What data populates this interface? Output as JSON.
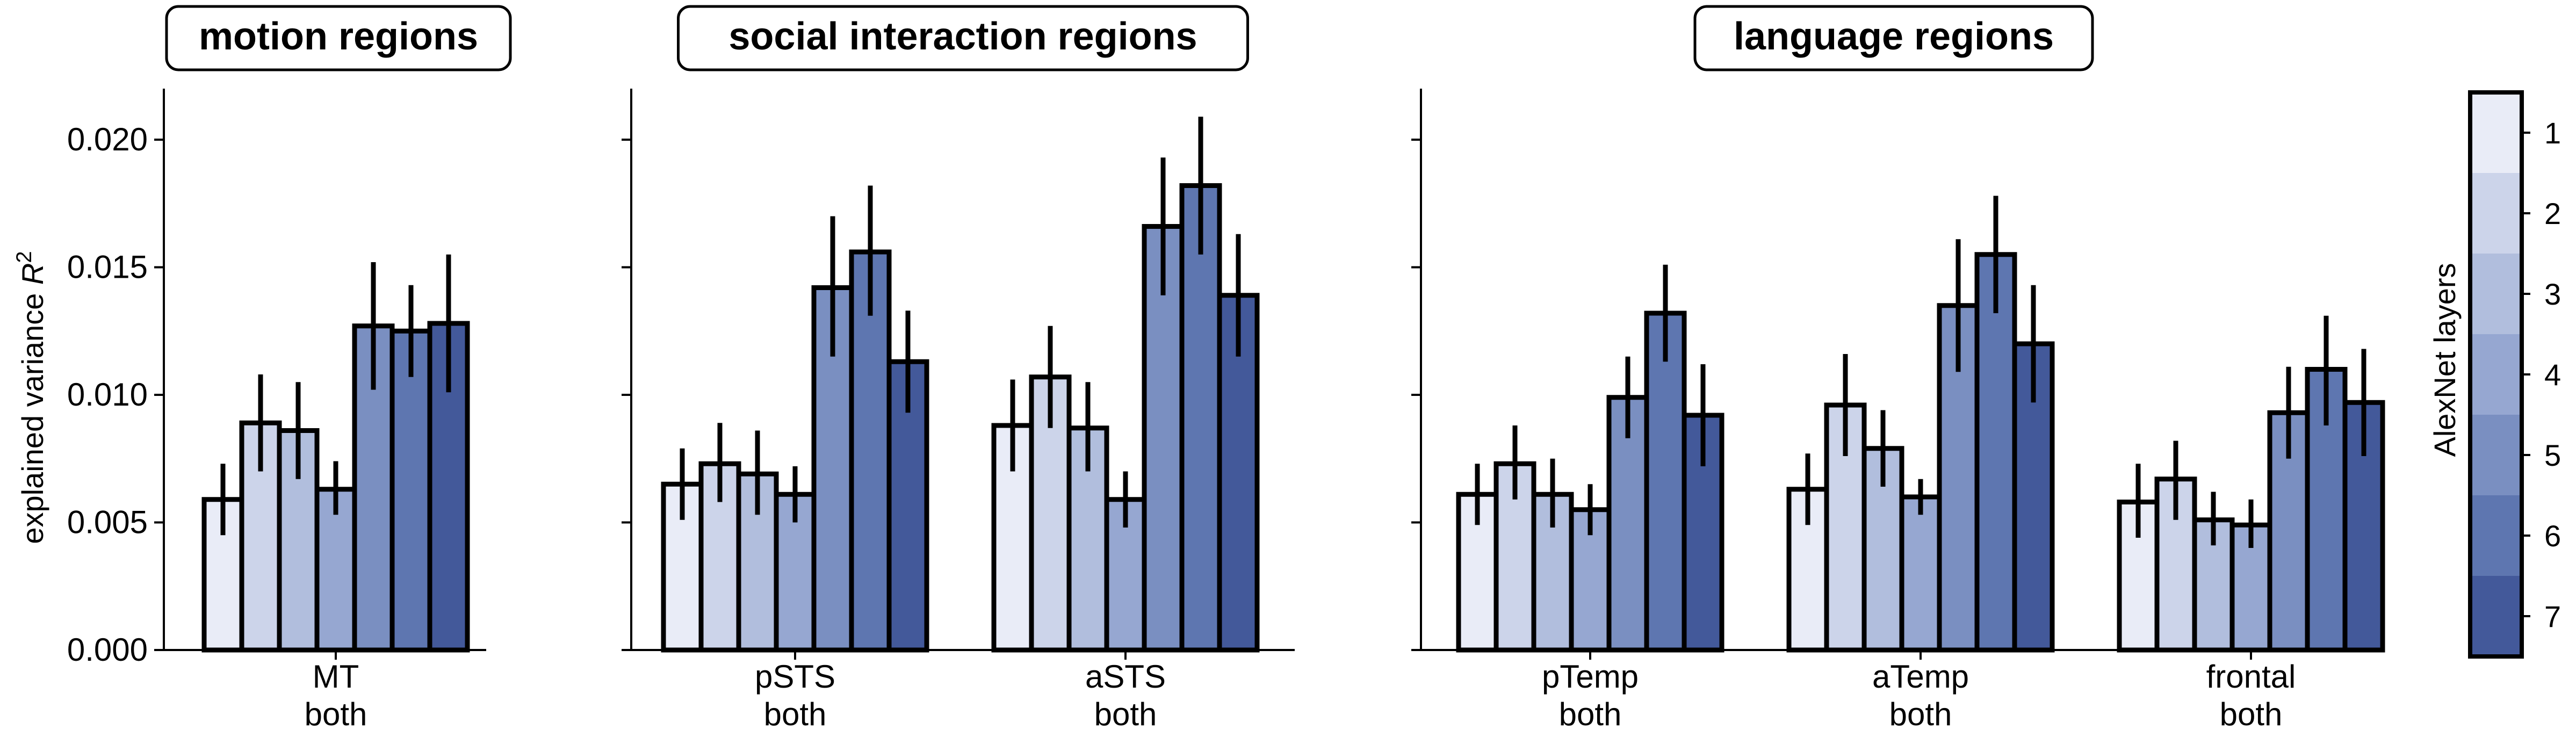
{
  "chart_data": {
    "type": "bar",
    "ylabel": "explained variance R²",
    "ylabel_main": "explained variance ",
    "ylabel_symbol": "R",
    "ylabel_superscript": "2",
    "ylim": [
      0,
      0.02
    ],
    "yticks": [
      0.0,
      0.005,
      0.01,
      0.015,
      0.02
    ],
    "ytick_labels": [
      "0.000",
      "0.005",
      "0.010",
      "0.015",
      "0.020"
    ],
    "grid": false,
    "legend": {
      "type": "colorbar",
      "title": "AlexNet layers",
      "placement": "right",
      "labels": [
        "1",
        "2",
        "3",
        "4",
        "5",
        "6",
        "7"
      ]
    },
    "colors": {
      "layers": [
        "#e9ecf7",
        "#ccd4ea",
        "#b1bedd",
        "#96a7d1",
        "#7a8fc1",
        "#5e76b0",
        "#43599a"
      ],
      "edge": "#000000",
      "errorbar": "#000000"
    },
    "panels": [
      {
        "title": "motion regions",
        "categories": [
          {
            "name": "MT",
            "sub": "both",
            "values": [
              0.0059,
              0.0089,
              0.0086,
              0.0063,
              0.0127,
              0.0125,
              0.0128
            ],
            "errors": [
              [
                0.0045,
                0.0073
              ],
              [
                0.007,
                0.0108
              ],
              [
                0.0067,
                0.0105
              ],
              [
                0.0053,
                0.0074
              ],
              [
                0.0102,
                0.0152
              ],
              [
                0.0107,
                0.0143
              ],
              [
                0.0101,
                0.0155
              ]
            ]
          }
        ]
      },
      {
        "title": "social interaction regions",
        "categories": [
          {
            "name": "pSTS",
            "sub": "both",
            "values": [
              0.0065,
              0.0073,
              0.0069,
              0.0061,
              0.0142,
              0.0156,
              0.0113
            ],
            "errors": [
              [
                0.0051,
                0.0079
              ],
              [
                0.0058,
                0.0089
              ],
              [
                0.0053,
                0.0086
              ],
              [
                0.005,
                0.0072
              ],
              [
                0.0115,
                0.017
              ],
              [
                0.0131,
                0.0182
              ],
              [
                0.0093,
                0.0133
              ]
            ]
          },
          {
            "name": "aSTS",
            "sub": "both",
            "values": [
              0.0088,
              0.0107,
              0.0087,
              0.0059,
              0.0166,
              0.0182,
              0.0139
            ],
            "errors": [
              [
                0.007,
                0.0106
              ],
              [
                0.0087,
                0.0127
              ],
              [
                0.007,
                0.0105
              ],
              [
                0.0048,
                0.007
              ],
              [
                0.0139,
                0.0193
              ],
              [
                0.0155,
                0.0209
              ],
              [
                0.0115,
                0.0163
              ]
            ]
          }
        ]
      },
      {
        "title": "language regions",
        "categories": [
          {
            "name": "pTemp",
            "sub": "both",
            "values": [
              0.0061,
              0.0073,
              0.0061,
              0.0055,
              0.0099,
              0.0132,
              0.0092
            ],
            "errors": [
              [
                0.0049,
                0.0073
              ],
              [
                0.0059,
                0.0088
              ],
              [
                0.0048,
                0.0075
              ],
              [
                0.0045,
                0.0065
              ],
              [
                0.0083,
                0.0115
              ],
              [
                0.0113,
                0.0151
              ],
              [
                0.0072,
                0.0112
              ]
            ]
          },
          {
            "name": "aTemp",
            "sub": "both",
            "values": [
              0.0063,
              0.0096,
              0.0079,
              0.006,
              0.0135,
              0.0155,
              0.012
            ],
            "errors": [
              [
                0.0049,
                0.0077
              ],
              [
                0.0076,
                0.0116
              ],
              [
                0.0064,
                0.0094
              ],
              [
                0.0053,
                0.0067
              ],
              [
                0.0109,
                0.0161
              ],
              [
                0.0132,
                0.0178
              ],
              [
                0.0097,
                0.0143
              ]
            ]
          },
          {
            "name": "frontal",
            "sub": "both",
            "values": [
              0.0058,
              0.0067,
              0.0051,
              0.0049,
              0.0093,
              0.011,
              0.0097
            ],
            "errors": [
              [
                0.0044,
                0.0073
              ],
              [
                0.0051,
                0.0082
              ],
              [
                0.0041,
                0.0062
              ],
              [
                0.004,
                0.0059
              ],
              [
                0.0075,
                0.0111
              ],
              [
                0.0088,
                0.0131
              ],
              [
                0.0076,
                0.0118
              ]
            ]
          }
        ]
      }
    ]
  }
}
